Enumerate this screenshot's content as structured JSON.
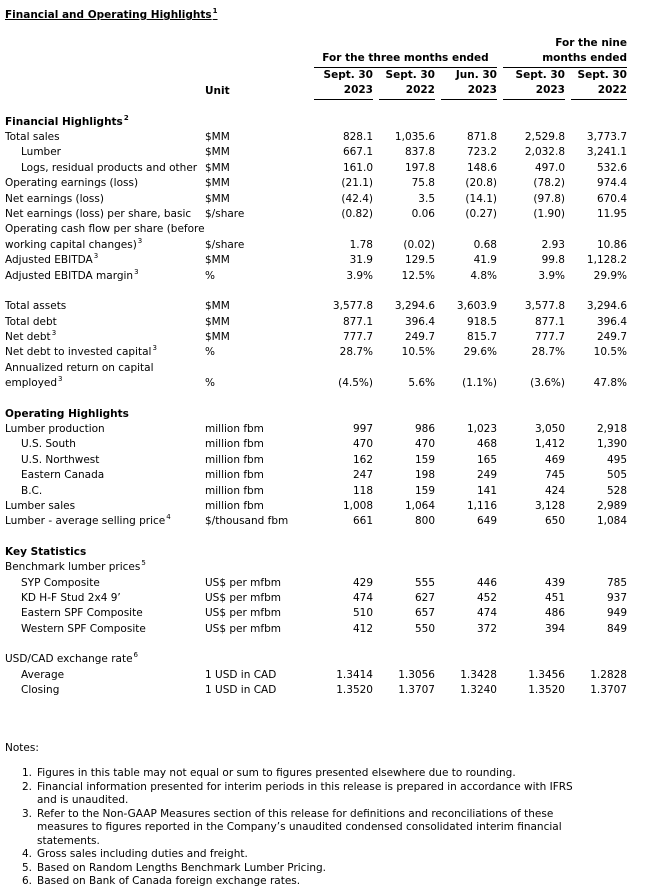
{
  "title": {
    "text": "Financial and Operating Highlights",
    "sup": "1"
  },
  "header": {
    "three_months": "For the three months ended",
    "nine_months": [
      "For the nine",
      "months ended"
    ],
    "unit": "Unit",
    "columns": [
      [
        "Sept. 30",
        "2023"
      ],
      [
        "Sept. 30",
        "2022"
      ],
      [
        "Jun. 30",
        "2023"
      ],
      [
        "Sept. 30",
        "2023"
      ],
      [
        "Sept. 30",
        "2022"
      ]
    ]
  },
  "sections": [
    {
      "heading": "Financial Highlights",
      "sup": "2",
      "rows": [
        {
          "label": "Total sales",
          "unit": "$MM",
          "values": [
            "828.1",
            "1,035.6",
            "871.8",
            "2,529.8",
            "3,773.7"
          ],
          "children": [
            {
              "label": "Lumber",
              "unit": "$MM",
              "values": [
                "667.1",
                "837.8",
                "723.2",
                "2,032.8",
                "3,241.1"
              ]
            },
            {
              "label": "Logs, residual products and other",
              "unit": "$MM",
              "values": [
                "161.0",
                "197.8",
                "148.6",
                "497.0",
                "532.6"
              ]
            }
          ]
        },
        {
          "label": "Operating earnings (loss)",
          "unit": "$MM",
          "values": [
            "(21.1)",
            "75.8",
            "(20.8)",
            "(78.2)",
            "974.4"
          ]
        },
        {
          "label": "Net earnings (loss)",
          "unit": "$MM",
          "values": [
            "(42.4)",
            "3.5",
            "(14.1)",
            "(97.8)",
            "670.4"
          ]
        },
        {
          "label": "Net earnings (loss) per share, basic",
          "unit": "$/share",
          "values": [
            "(0.82)",
            "0.06",
            "(0.27)",
            "(1.90)",
            "11.95"
          ]
        },
        {
          "label": "Operating cash flow per share (before working capital changes)",
          "sup": "3",
          "unit": "$/share",
          "values": [
            "1.78",
            "(0.02)",
            "0.68",
            "2.93",
            "10.86"
          ]
        },
        {
          "label": "Adjusted EBITDA",
          "sup": "3",
          "unit": "$MM",
          "values": [
            "31.9",
            "129.5",
            "41.9",
            "99.8",
            "1,128.2"
          ]
        },
        {
          "label": "Adjusted EBITDA margin",
          "sup": "3",
          "unit": "%",
          "values": [
            "3.9%",
            "12.5%",
            "4.8%",
            "3.9%",
            "29.9%"
          ]
        }
      ]
    },
    {
      "rows": [
        {
          "label": "Total assets",
          "unit": "$MM",
          "values": [
            "3,577.8",
            "3,294.6",
            "3,603.9",
            "3,577.8",
            "3,294.6"
          ]
        },
        {
          "label": "Total debt",
          "unit": "$MM",
          "values": [
            "877.1",
            "396.4",
            "918.5",
            "877.1",
            "396.4"
          ]
        },
        {
          "label": "Net debt",
          "sup": "3",
          "unit": "$MM",
          "values": [
            "777.7",
            "249.7",
            "815.7",
            "777.7",
            "249.7"
          ]
        },
        {
          "label": "Net debt to invested capital",
          "sup": "3",
          "unit": "%",
          "values": [
            "28.7%",
            "10.5%",
            "29.6%",
            "28.7%",
            "10.5%"
          ]
        },
        {
          "label": "Annualized return on capital employed",
          "sup": "3",
          "unit": "%",
          "values": [
            "(4.5%)",
            "5.6%",
            "(1.1%)",
            "(3.6%)",
            "47.8%"
          ]
        }
      ]
    },
    {
      "heading": "Operating Highlights",
      "rows": [
        {
          "label": "Lumber production",
          "unit": "million fbm",
          "values": [
            "997",
            "986",
            "1,023",
            "3,050",
            "2,918"
          ],
          "children": [
            {
              "label": "U.S. South",
              "unit": "million fbm",
              "values": [
                "470",
                "470",
                "468",
                "1,412",
                "1,390"
              ]
            },
            {
              "label": "U.S. Northwest",
              "unit": "million fbm",
              "values": [
                "162",
                "159",
                "165",
                "469",
                "495"
              ]
            },
            {
              "label": "Eastern Canada",
              "unit": "million fbm",
              "values": [
                "247",
                "198",
                "249",
                "745",
                "505"
              ]
            },
            {
              "label": "B.C.",
              "unit": "million fbm",
              "values": [
                "118",
                "159",
                "141",
                "424",
                "528"
              ]
            }
          ]
        },
        {
          "label": "Lumber sales",
          "unit": "million fbm",
          "values": [
            "1,008",
            "1,064",
            "1,116",
            "3,128",
            "2,989"
          ]
        },
        {
          "label": "Lumber - average selling price",
          "sup": "4",
          "unit": "$/thousand fbm",
          "values": [
            "661",
            "800",
            "649",
            "650",
            "1,084"
          ]
        }
      ]
    },
    {
      "heading": "Key Statistics",
      "rows": [
        {
          "label": "Benchmark lumber prices",
          "sup": "5",
          "children": [
            {
              "label": "SYP Composite",
              "unit": "US$ per mfbm",
              "values": [
                "429",
                "555",
                "446",
                "439",
                "785"
              ]
            },
            {
              "label": "KD H-F Stud 2x4 9’",
              "unit": "US$ per mfbm",
              "values": [
                "474",
                "627",
                "452",
                "451",
                "937"
              ]
            },
            {
              "label": "Eastern SPF Composite",
              "unit": "US$ per mfbm",
              "values": [
                "510",
                "657",
                "474",
                "486",
                "949"
              ]
            },
            {
              "label": "Western SPF Composite",
              "unit": "US$ per mfbm",
              "values": [
                "412",
                "550",
                "372",
                "394",
                "849"
              ]
            }
          ]
        }
      ]
    },
    {
      "rows": [
        {
          "label": "USD/CAD exchange rate",
          "sup": "6",
          "children": [
            {
              "label": "Average",
              "unit": "1 USD in CAD",
              "values": [
                "1.3414",
                "1.3056",
                "1.3428",
                "1.3456",
                "1.2828"
              ]
            },
            {
              "label": "Closing",
              "unit": "1 USD in CAD",
              "values": [
                "1.3520",
                "1.3707",
                "1.3240",
                "1.3520",
                "1.3707"
              ]
            }
          ]
        }
      ]
    }
  ],
  "notes": {
    "heading": "Notes:",
    "items": [
      {
        "n": "1.",
        "text": "Figures in this table may not equal or sum to figures presented elsewhere due to rounding."
      },
      {
        "n": "2.",
        "text": "Financial information presented for interim periods in this release is prepared in accordance with IFRS and is unaudited."
      },
      {
        "n": "3.",
        "text": "Refer to the Non-GAAP Measures section of this release for definitions and reconciliations of these measures to figures reported in the Company’s unaudited condensed consolidated interim financial statements."
      },
      {
        "n": "4.",
        "text": "Gross sales including duties and freight."
      },
      {
        "n": "5.",
        "text": "Based on Random Lengths Benchmark Lumber Pricing."
      },
      {
        "n": "6.",
        "text": "Based on Bank of Canada foreign exchange rates."
      }
    ]
  }
}
